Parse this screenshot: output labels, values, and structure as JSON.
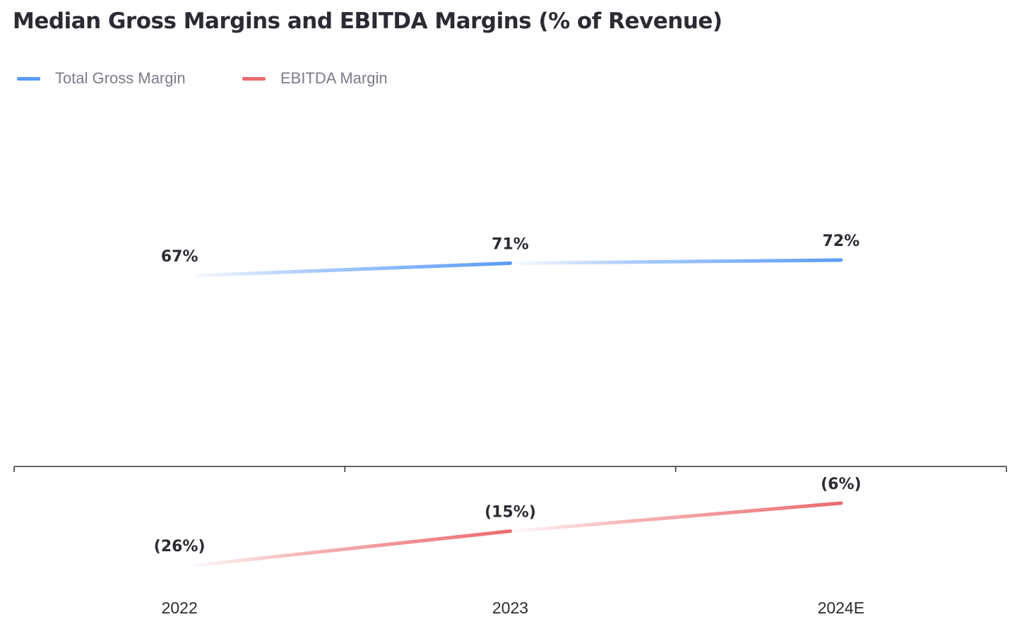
{
  "chart_data": {
    "type": "line",
    "title": "Median Gross Margins and EBITDA Margins (% of Revenue)",
    "categories": [
      "2022",
      "2023",
      "2024E"
    ],
    "series": [
      {
        "name": "Total Gross Margin",
        "color": "#5b9bf8",
        "values": [
          67,
          71,
          72
        ],
        "labels": [
          "67%",
          "71%",
          "72%"
        ]
      },
      {
        "name": "EBITDA Margin",
        "color": "#ec6b6f",
        "values": [
          -26,
          -15,
          -6
        ],
        "labels": [
          "(26%)",
          "(15%)",
          "(6%)"
        ]
      }
    ],
    "xlabel": "",
    "ylabel": "",
    "ylim": [
      -26,
      72
    ],
    "grid": false,
    "legend": "top-left"
  }
}
